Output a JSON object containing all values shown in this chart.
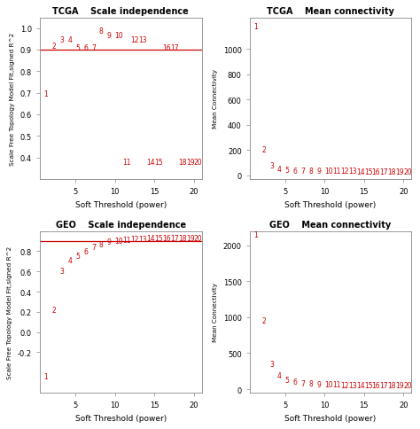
{
  "tcga_sft_x": [
    1,
    2,
    3,
    4,
    5,
    6,
    7,
    8,
    9,
    10,
    11,
    12,
    13,
    14,
    15,
    16,
    17,
    18,
    19,
    20
  ],
  "tcga_sft_y": [
    0.68,
    0.9,
    0.93,
    0.93,
    0.89,
    0.89,
    0.89,
    0.97,
    0.95,
    0.95,
    0.36,
    0.93,
    0.93,
    0.36,
    0.36,
    0.89,
    0.89,
    0.36,
    0.36,
    0.36
  ],
  "tcga_mc_x": [
    1,
    2,
    3,
    4,
    5,
    6,
    7,
    8,
    9,
    10,
    11,
    12,
    13,
    14,
    15,
    16,
    17,
    18,
    19,
    20
  ],
  "tcga_mc_y": [
    1150,
    170,
    50,
    20,
    12,
    8,
    5,
    4,
    3,
    2.5,
    2,
    1.5,
    1.5,
    1,
    1,
    1,
    1,
    0.8,
    0.8,
    0.8
  ],
  "geo_sft_x": [
    1,
    2,
    3,
    4,
    5,
    6,
    7,
    8,
    9,
    10,
    11,
    12,
    13,
    14,
    15,
    16,
    17,
    18,
    19,
    20
  ],
  "geo_sft_y": [
    -0.48,
    0.18,
    0.57,
    0.67,
    0.72,
    0.76,
    0.8,
    0.83,
    0.855,
    0.868,
    0.876,
    0.882,
    0.886,
    0.888,
    0.889,
    0.89,
    0.89,
    0.89,
    0.89,
    0.89
  ],
  "geo_mc_x": [
    1,
    2,
    3,
    4,
    5,
    6,
    7,
    8,
    9,
    10,
    11,
    12,
    13,
    14,
    15,
    16,
    17,
    18,
    19,
    20
  ],
  "geo_mc_y": [
    2100,
    900,
    300,
    130,
    70,
    45,
    30,
    20,
    15,
    10,
    8,
    6,
    5,
    4,
    3.5,
    3,
    2.5,
    2,
    2,
    1.5
  ],
  "color": "#cc0000",
  "threshold_line_tcga": 0.9,
  "threshold_line_geo": 0.9,
  "bg_color": "#ffffff",
  "tcga_sft_ylim": [
    0.3,
    1.05
  ],
  "tcga_sft_yticks": [
    0.4,
    0.5,
    0.6,
    0.7,
    0.8,
    0.9,
    1.0
  ],
  "tcga_mc_ylim": [
    -30,
    1250
  ],
  "tcga_mc_yticks": [
    0,
    200,
    400,
    600,
    800,
    1000
  ],
  "geo_sft_ylim": [
    -0.6,
    1.0
  ],
  "geo_sft_yticks": [
    -0.2,
    0.0,
    0.2,
    0.4,
    0.6,
    0.8
  ],
  "geo_mc_ylim": [
    -50,
    2200
  ],
  "geo_mc_yticks": [
    0,
    500,
    1000,
    1500,
    2000
  ],
  "xlim": [
    0.5,
    21
  ],
  "xticks": [
    5,
    10,
    15,
    20
  ],
  "xlabel": "Soft Threshold (power)",
  "ylabel_sft": "Scale Free Topology Model Fit,signed R^2",
  "ylabel_mc": "Mean Connectivity",
  "title_tcga_sft": "TCGA    Scale independence",
  "title_tcga_mc": "TCGA    Mean connectivity",
  "title_geo_sft": "GEO    Scale independence",
  "title_geo_mc": "GEO    Mean connectivity"
}
